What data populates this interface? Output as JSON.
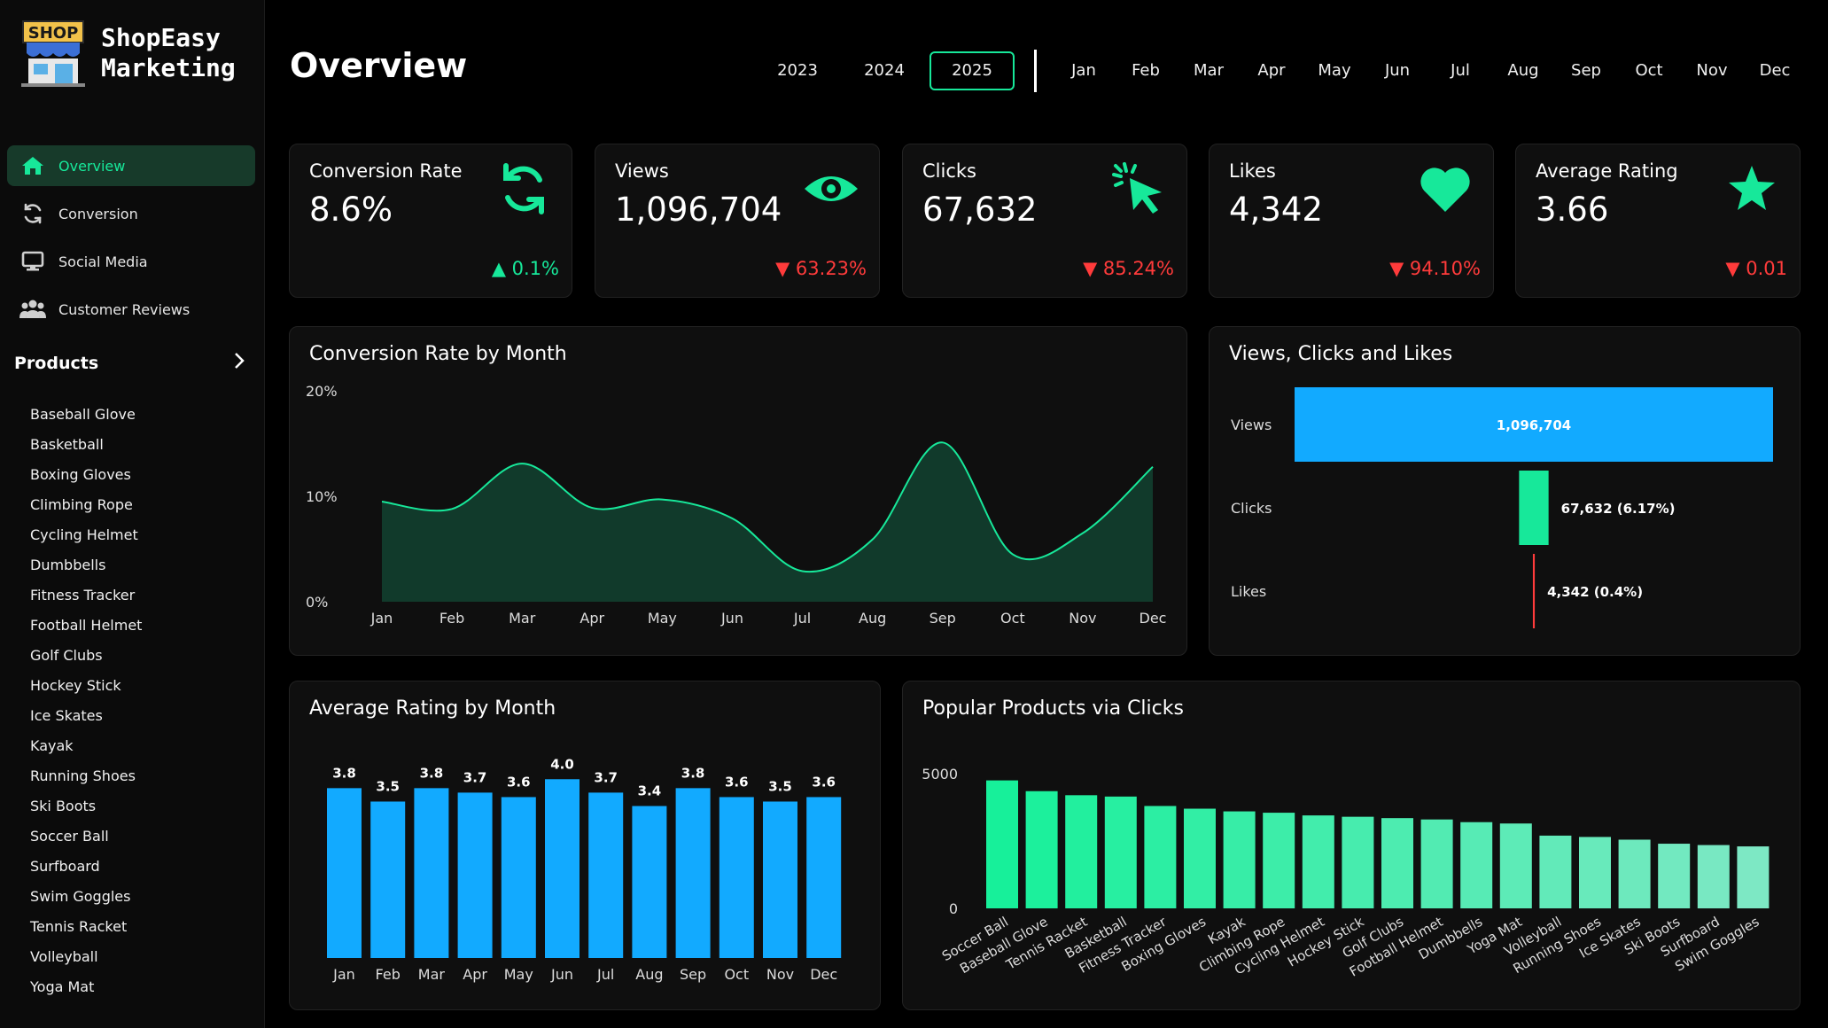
{
  "app": {
    "logo_sign": "SHOP",
    "title_line1": "ShopEasy",
    "title_line2": "Marketing"
  },
  "nav": {
    "items": [
      {
        "label": "Overview",
        "icon": "home-icon",
        "active": true
      },
      {
        "label": "Conversion",
        "icon": "refresh-icon",
        "active": false
      },
      {
        "label": "Social Media",
        "icon": "monitor-icon",
        "active": false
      },
      {
        "label": "Customer Reviews",
        "icon": "people-icon",
        "active": false
      }
    ],
    "products_label": "Products",
    "products": [
      "Baseball Glove",
      "Basketball",
      "Boxing Gloves",
      "Climbing Rope",
      "Cycling Helmet",
      "Dumbbells",
      "Fitness Tracker",
      "Football Helmet",
      "Golf Clubs",
      "Hockey Stick",
      "Ice Skates",
      "Kayak",
      "Running Shoes",
      "Ski Boots",
      "Soccer Ball",
      "Surfboard",
      "Swim Goggles",
      "Tennis Racket",
      "Volleyball",
      "Yoga Mat"
    ]
  },
  "header": {
    "title": "Overview",
    "years": [
      "2023",
      "2024",
      "2025"
    ],
    "selected_year": "2025",
    "months": [
      "Jan",
      "Feb",
      "Mar",
      "Apr",
      "May",
      "Jun",
      "Jul",
      "Aug",
      "Sep",
      "Oct",
      "Nov",
      "Dec"
    ]
  },
  "colors": {
    "accent": "#17e89a",
    "bar_blue": "#12aaff",
    "negative": "#ff3b3b",
    "active_bg": "#173a2a"
  },
  "kpis": [
    {
      "title": "Conversion Rate",
      "value": "8.6%",
      "change": "0.1%",
      "direction": "up",
      "icon": "refresh-icon"
    },
    {
      "title": "Views",
      "value": "1,096,704",
      "change": "63.23%",
      "direction": "down",
      "icon": "eye-icon"
    },
    {
      "title": "Clicks",
      "value": "67,632",
      "change": "85.24%",
      "direction": "down",
      "icon": "cursor-click-icon"
    },
    {
      "title": "Likes",
      "value": "4,342",
      "change": "94.10%",
      "direction": "down",
      "icon": "heart-icon"
    },
    {
      "title": "Average Rating",
      "value": "3.66",
      "change": "0.01",
      "direction": "down",
      "icon": "star-icon"
    }
  ],
  "chart_data": [
    {
      "type": "area",
      "title": "Conversion Rate by Month",
      "categories": [
        "Jan",
        "Feb",
        "Mar",
        "Apr",
        "May",
        "Jun",
        "Jul",
        "Aug",
        "Sep",
        "Oct",
        "Nov",
        "Dec"
      ],
      "values": [
        9.5,
        8.8,
        13.1,
        8.9,
        9.7,
        7.9,
        2.9,
        5.9,
        15.1,
        4.5,
        6.5,
        12.8
      ],
      "yticks": [
        "0%",
        "10%",
        "20%"
      ],
      "ylim": [
        0,
        20
      ],
      "color": "#17e89a"
    },
    {
      "type": "bar",
      "title": "Views, Clicks and Likes",
      "categories": [
        "Views",
        "Clicks",
        "Likes"
      ],
      "values": [
        1096704,
        67632,
        4342
      ],
      "labels": [
        "1,096,704",
        "67,632 (6.17%)",
        "4,342 (0.4%)"
      ],
      "colors": [
        "#12aaff",
        "#17e89a",
        "#ff3b3b"
      ]
    },
    {
      "type": "bar",
      "title": "Average Rating by Month",
      "categories": [
        "Jan",
        "Feb",
        "Mar",
        "Apr",
        "May",
        "Jun",
        "Jul",
        "Aug",
        "Sep",
        "Oct",
        "Nov",
        "Dec"
      ],
      "values": [
        3.8,
        3.5,
        3.8,
        3.7,
        3.6,
        4.0,
        3.7,
        3.4,
        3.8,
        3.6,
        3.5,
        3.6
      ],
      "ylim": [
        0,
        4.6
      ],
      "color": "#12aaff"
    },
    {
      "type": "bar",
      "title": "Popular Products via Clicks",
      "categories": [
        "Soccer Ball",
        "Baseball Glove",
        "Tennis Racket",
        "Basketball",
        "Fitness Tracker",
        "Boxing Gloves",
        "Kayak",
        "Climbing Rope",
        "Cycling Helmet",
        "Hockey Stick",
        "Golf Clubs",
        "Football Helmet",
        "Dumbbells",
        "Yoga Mat",
        "Volleyball",
        "Running Shoes",
        "Ice Skates",
        "Ski Boots",
        "Surfboard",
        "Swim Goggles"
      ],
      "values": [
        4750,
        4350,
        4200,
        4150,
        3800,
        3700,
        3600,
        3550,
        3450,
        3400,
        3350,
        3300,
        3200,
        3150,
        2700,
        2650,
        2550,
        2400,
        2350,
        2300
      ],
      "yticks": [
        "0",
        "5000"
      ],
      "ylim": [
        0,
        5000
      ],
      "color": "#17e89a"
    }
  ]
}
